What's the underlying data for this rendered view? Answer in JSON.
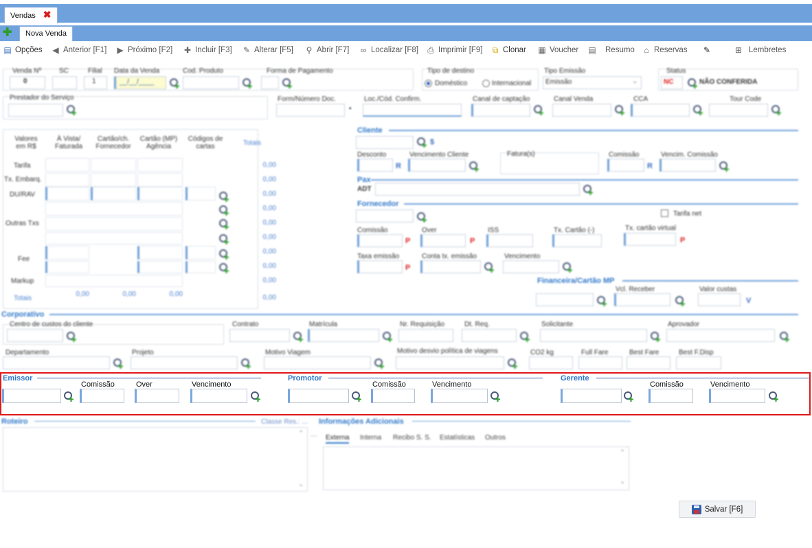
{
  "tabs": {
    "main": "Vendas",
    "sub": "Nova Venda"
  },
  "toolbar": {
    "opcoes": "Opções",
    "anterior": "Anterior [F1]",
    "proximo": "Próximo [F2]",
    "incluir": "Incluir [F3]",
    "alterar": "Alterar [F5]",
    "abrir": "Abrir [F7]",
    "localizar": "Localizar [F8]",
    "imprimir": "Imprimir [F9]",
    "clonar": "Clonar",
    "voucher": "Voucher",
    "resumo": "Resumo",
    "reservas": "Reservas",
    "lembretes": "Lembretes"
  },
  "header": {
    "venda_no": "Venda Nº",
    "venda_val": "0",
    "sc": "SC",
    "filial": "Filial",
    "filial_val": "1",
    "data_venda": "Data da Venda",
    "data_val": "__/__/____",
    "cod_produto": "Cod. Produto",
    "forma_pagto": "Forma de Pagamento",
    "tipo_destino": "Tipo de destino",
    "domestico": "Doméstico",
    "internacional": "Internacional",
    "tipo_emissao": "Tipo Emissão",
    "emissao_val": "Emissão",
    "status": "Status",
    "status_code": "NC",
    "status_val": "NÃO CONFERIDA",
    "prestador": "Prestador do Serviço",
    "form_doc": "Form/Número Doc.",
    "loc_cod": "Loc./Cód. Confirm.",
    "canal_captacao": "Canal de captação",
    "canal_venda": "Canal Venda",
    "cca": "CCA",
    "tour_code": "Tour Code"
  },
  "values_grid": {
    "headers": [
      "Valores em R$",
      "À Vista/ Faturada",
      "Cartão/ch. Fornecedor",
      "Cartão (MP) Agência",
      "Códigos de cartas",
      "Totais"
    ],
    "rows": [
      "Tarifa",
      "Tx. Embarq.",
      "DU/RAV",
      "Outras Txs",
      "Fee",
      "Markup",
      "Totais"
    ],
    "totals": [
      "0,00",
      "0,00",
      "0,00",
      "0,00",
      "0,00",
      "0,00",
      "0,00",
      "0,00",
      "0,00",
      "0,00",
      "0,00"
    ],
    "foot": [
      "0,00",
      "0,00",
      "0,00",
      "0,00"
    ]
  },
  "cliente": {
    "title": "Cliente",
    "desconto": "Desconto",
    "venc_cliente": "Vencimento Cliente",
    "faturas": "Fatura(s)",
    "comissao": "Comissão",
    "venc_comissao": "Vencim. Comissão",
    "pax": "Pax",
    "pax_val": "ADT",
    "fornecedor": "Fornecedor",
    "tarifa_net": "Tarifa net",
    "comissao2": "Comissão",
    "over": "Over",
    "iss": "ISS",
    "tx_cartao": "Tx. Cartão (-)",
    "tx_cartao_virtual": "Tx. cartão virtual",
    "taxa_emissao": "Taxa emissão",
    "conta_tx": "Conta tx. emissão",
    "vencimento": "Vencimento",
    "financeira": "Financeira/Cartão MP",
    "vlr_receber": "Vcl. Receber",
    "valor_custas": "Valor custas"
  },
  "corporativo": {
    "title": "Corporativo",
    "centro_custos": "Centro de custos do cliente",
    "contrato": "Contrato",
    "matricula": "Matrícula",
    "nr_requisicao": "Nr. Requisição",
    "dt_req": "Dt. Req.",
    "solicitante": "Solicitante",
    "aprovador": "Aprovador",
    "departamento": "Departamento",
    "projeto": "Projeto",
    "motivo_viagem": "Motivo Viagem",
    "motivo_desvio": "Motivo desvio política de viagens",
    "co2": "CO2 kg",
    "full_fare": "Full Fare",
    "best_fare": "Best Fare",
    "best_fdisp": "Best F.Disp"
  },
  "highlight": {
    "emissor": "Emissor",
    "promotor": "Promotor",
    "gerente": "Gerente",
    "comissao": "Comissão",
    "over": "Over",
    "vencimento": "Vencimento"
  },
  "bottom": {
    "roteiro": "Roteiro",
    "classe": "Classe Res.: ...",
    "info_adicionais": "Informações Adicionais",
    "subtabs": [
      "Externa",
      "Interna",
      "Recibo S. S.",
      "Estatísticas",
      "Outros"
    ],
    "salvar": "Salvar [F6]"
  }
}
